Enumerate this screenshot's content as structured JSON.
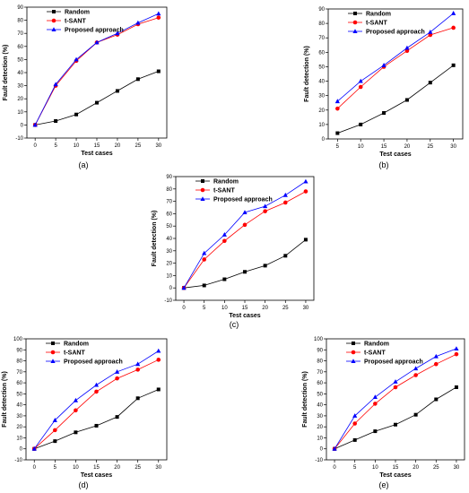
{
  "chart_data": [
    {
      "panel_label": "(a)",
      "type": "line",
      "xlabel": "Test cases",
      "ylabel": "Fault detection (%)",
      "xlim": [
        -2,
        32
      ],
      "ylim": [
        -10,
        90
      ],
      "xticks": [
        0,
        5,
        10,
        15,
        20,
        25,
        30
      ],
      "yticks": [
        -10,
        0,
        10,
        20,
        30,
        40,
        50,
        60,
        70,
        80,
        90
      ],
      "legend_position": "top-left",
      "x": [
        0,
        5,
        10,
        15,
        20,
        25,
        30
      ],
      "series": [
        {
          "name": "Random",
          "color": "#000000",
          "marker": "square",
          "values": [
            0,
            3,
            8,
            17,
            26,
            35,
            41
          ]
        },
        {
          "name": "t-SANT",
          "color": "#ff0000",
          "marker": "circle",
          "values": [
            0,
            30,
            49,
            63,
            69,
            77,
            82
          ]
        },
        {
          "name": "Proposed approach",
          "color": "#0000ff",
          "marker": "triangle",
          "values": [
            0,
            31,
            50,
            63,
            70,
            78,
            85
          ]
        }
      ]
    },
    {
      "panel_label": "(b)",
      "type": "line",
      "xlabel": "Test cases",
      "ylabel": "Fault detection (%)",
      "xlim": [
        3,
        32
      ],
      "ylim": [
        0,
        90
      ],
      "xticks": [
        5,
        10,
        15,
        20,
        25,
        30
      ],
      "yticks": [
        0,
        10,
        20,
        30,
        40,
        50,
        60,
        70,
        80,
        90
      ],
      "legend_position": "top-left",
      "x": [
        5,
        10,
        15,
        20,
        25,
        30
      ],
      "series": [
        {
          "name": "Random",
          "color": "#000000",
          "marker": "square",
          "values": [
            4,
            10,
            18,
            27,
            39,
            51
          ]
        },
        {
          "name": "t-SANT",
          "color": "#ff0000",
          "marker": "circle",
          "values": [
            21,
            36,
            50,
            61,
            72,
            77
          ]
        },
        {
          "name": "Proposed approach",
          "color": "#0000ff",
          "marker": "triangle",
          "values": [
            26,
            40,
            51,
            63,
            74,
            87
          ]
        }
      ]
    },
    {
      "panel_label": "(c)",
      "type": "line",
      "xlabel": "Test cases",
      "ylabel": "Fault detection (%)",
      "xlim": [
        -2,
        32
      ],
      "ylim": [
        -10,
        90
      ],
      "xticks": [
        0,
        5,
        10,
        15,
        20,
        25,
        30
      ],
      "yticks": [
        -10,
        0,
        10,
        20,
        30,
        40,
        50,
        60,
        70,
        80,
        90
      ],
      "legend_position": "top-left",
      "x": [
        0,
        5,
        10,
        15,
        20,
        25,
        30
      ],
      "series": [
        {
          "name": "Random",
          "color": "#000000",
          "marker": "square",
          "values": [
            0,
            2,
            7,
            13,
            18,
            26,
            39
          ]
        },
        {
          "name": "t-SANT",
          "color": "#ff0000",
          "marker": "circle",
          "values": [
            0,
            23,
            38,
            51,
            62,
            69,
            78
          ]
        },
        {
          "name": "Proposed approach",
          "color": "#0000ff",
          "marker": "triangle",
          "values": [
            0,
            28,
            43,
            61,
            66,
            75,
            86
          ]
        }
      ]
    },
    {
      "panel_label": "(d)",
      "type": "line",
      "xlabel": "Test cases",
      "ylabel": "Fault detection (%)",
      "xlim": [
        -2,
        32
      ],
      "ylim": [
        -10,
        100
      ],
      "xticks": [
        0,
        5,
        10,
        15,
        20,
        25,
        30
      ],
      "yticks": [
        -10,
        0,
        10,
        20,
        30,
        40,
        50,
        60,
        70,
        80,
        90,
        100
      ],
      "legend_position": "top-left",
      "x": [
        0,
        5,
        10,
        15,
        20,
        25,
        30
      ],
      "series": [
        {
          "name": "Random",
          "color": "#000000",
          "marker": "square",
          "values": [
            0,
            7,
            15,
            21,
            29,
            46,
            54
          ]
        },
        {
          "name": "t-SANT",
          "color": "#ff0000",
          "marker": "circle",
          "values": [
            0,
            17,
            35,
            52,
            64,
            72,
            81
          ]
        },
        {
          "name": "Proposed approach",
          "color": "#0000ff",
          "marker": "triangle",
          "values": [
            0,
            26,
            44,
            58,
            70,
            77,
            89
          ]
        }
      ]
    },
    {
      "panel_label": "(e)",
      "type": "line",
      "xlabel": "Test cases",
      "ylabel": "Fault detection (%)",
      "xlim": [
        -2,
        32
      ],
      "ylim": [
        -10,
        100
      ],
      "xticks": [
        0,
        5,
        10,
        15,
        20,
        25,
        30
      ],
      "yticks": [
        -10,
        0,
        10,
        20,
        30,
        40,
        50,
        60,
        70,
        80,
        90,
        100
      ],
      "legend_position": "top-left",
      "x": [
        0,
        5,
        10,
        15,
        20,
        25,
        30
      ],
      "series": [
        {
          "name": "Random",
          "color": "#000000",
          "marker": "square",
          "values": [
            0,
            8,
            16,
            22,
            31,
            45,
            56
          ]
        },
        {
          "name": "t-SANT",
          "color": "#ff0000",
          "marker": "circle",
          "values": [
            0,
            23,
            41,
            56,
            67,
            77,
            86
          ]
        },
        {
          "name": "Proposed approach",
          "color": "#0000ff",
          "marker": "triangle",
          "values": [
            0,
            30,
            47,
            61,
            73,
            84,
            91
          ]
        }
      ]
    }
  ]
}
